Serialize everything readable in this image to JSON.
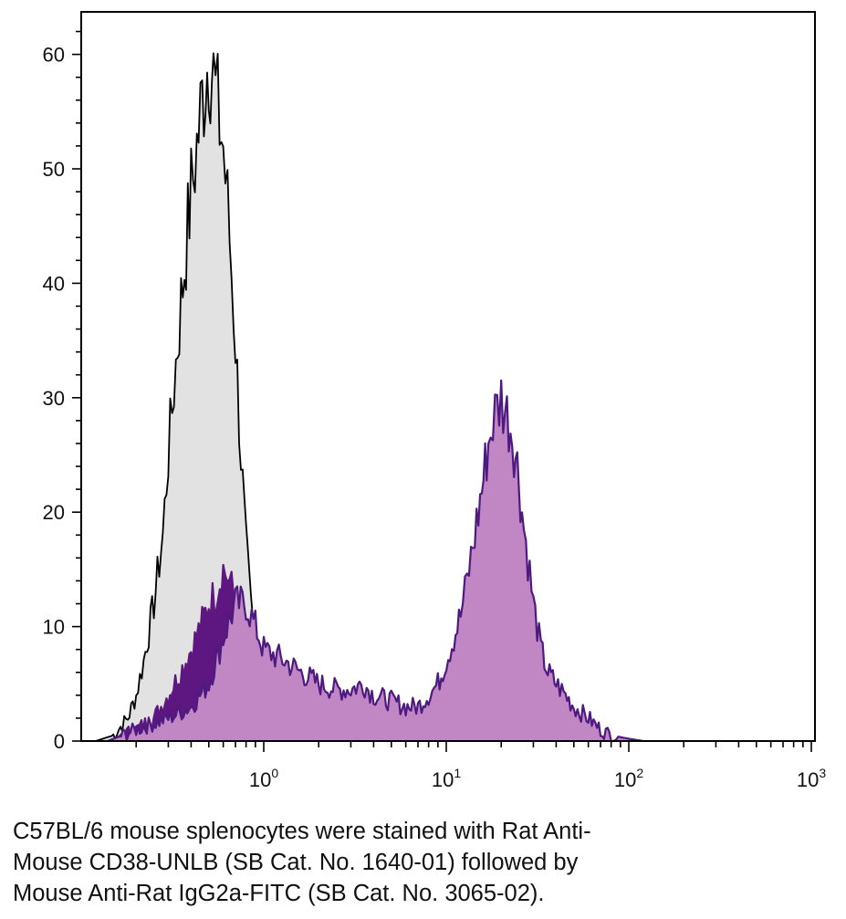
{
  "chart_data": {
    "type": "area",
    "x_scale": "log",
    "xlim": [
      0.12,
      1000
    ],
    "ylim": [
      0,
      64
    ],
    "grid": false,
    "legend": "none",
    "y_ticks": [
      "0",
      "10",
      "20",
      "30",
      "40",
      "50",
      "60"
    ],
    "x_ticks": [
      {
        "base": "10",
        "exp": "0"
      },
      {
        "base": "10",
        "exp": "1"
      },
      {
        "base": "10",
        "exp": "2"
      },
      {
        "base": "10",
        "exp": "3"
      }
    ],
    "series": [
      {
        "fill": "#e2e2e2",
        "stroke": "#000000",
        "x": [
          0.12,
          0.15,
          0.18,
          0.2,
          0.22,
          0.25,
          0.28,
          0.3,
          0.33,
          0.36,
          0.4,
          0.43,
          0.46,
          0.5,
          0.53,
          0.56,
          0.6,
          0.65,
          0.7,
          0.75,
          0.8,
          0.85,
          0.9,
          1.0,
          1.1,
          1.3,
          1.6
        ],
        "y": [
          0,
          0.5,
          2,
          4,
          7,
          12,
          18,
          25,
          33,
          40,
          48,
          52,
          56,
          60,
          58,
          55,
          52,
          44,
          35,
          25,
          17,
          12,
          8,
          4,
          2,
          0.5,
          0
        ]
      },
      {
        "fill": "#5e1780",
        "stroke": "#5e1780",
        "x": [
          0.14,
          0.2,
          0.25,
          0.3,
          0.35,
          0.4,
          0.45,
          0.5,
          0.55,
          0.6,
          0.65,
          0.7,
          0.75,
          0.8,
          0.9,
          1.0,
          1.15,
          1.4
        ],
        "y": [
          0,
          1,
          2,
          4,
          6,
          8,
          10,
          12,
          13,
          15,
          14,
          12,
          10,
          8,
          6,
          3,
          1,
          0
        ]
      },
      {
        "fill": "#c187c4",
        "stroke": "#4e1a80",
        "x": [
          0.14,
          0.2,
          0.3,
          0.4,
          0.5,
          0.6,
          0.7,
          0.8,
          0.9,
          1.0,
          1.3,
          1.6,
          2.0,
          2.5,
          3.0,
          3.5,
          4.0,
          5.0,
          6.0,
          7.0,
          8.0,
          9.0,
          10,
          11,
          12,
          13,
          14,
          15,
          16,
          17,
          18,
          19,
          20,
          21,
          22,
          23,
          24,
          25,
          26,
          28,
          30,
          33,
          36,
          40,
          45,
          50,
          60,
          70,
          80,
          100,
          120
        ],
        "y": [
          0,
          1,
          2,
          3,
          5,
          9,
          12,
          12,
          10,
          8,
          7,
          6,
          5,
          4.5,
          4.5,
          5,
          4,
          3.5,
          3,
          3,
          4,
          5,
          7,
          9,
          11,
          14,
          17,
          20,
          23,
          26,
          28,
          29,
          30,
          29,
          28,
          27,
          25,
          23,
          20,
          16,
          12,
          8,
          6,
          5,
          4,
          3,
          2,
          1,
          0.5,
          0.2,
          0
        ]
      }
    ]
  },
  "caption": {
    "line1": "C57BL/6 mouse splenocytes were stained with Rat Anti-",
    "line2": "Mouse CD38-UNLB (SB Cat. No. 1640-01) followed by",
    "line3": "Mouse Anti-Rat IgG2a-FITC (SB Cat. No. 3065-02)."
  }
}
